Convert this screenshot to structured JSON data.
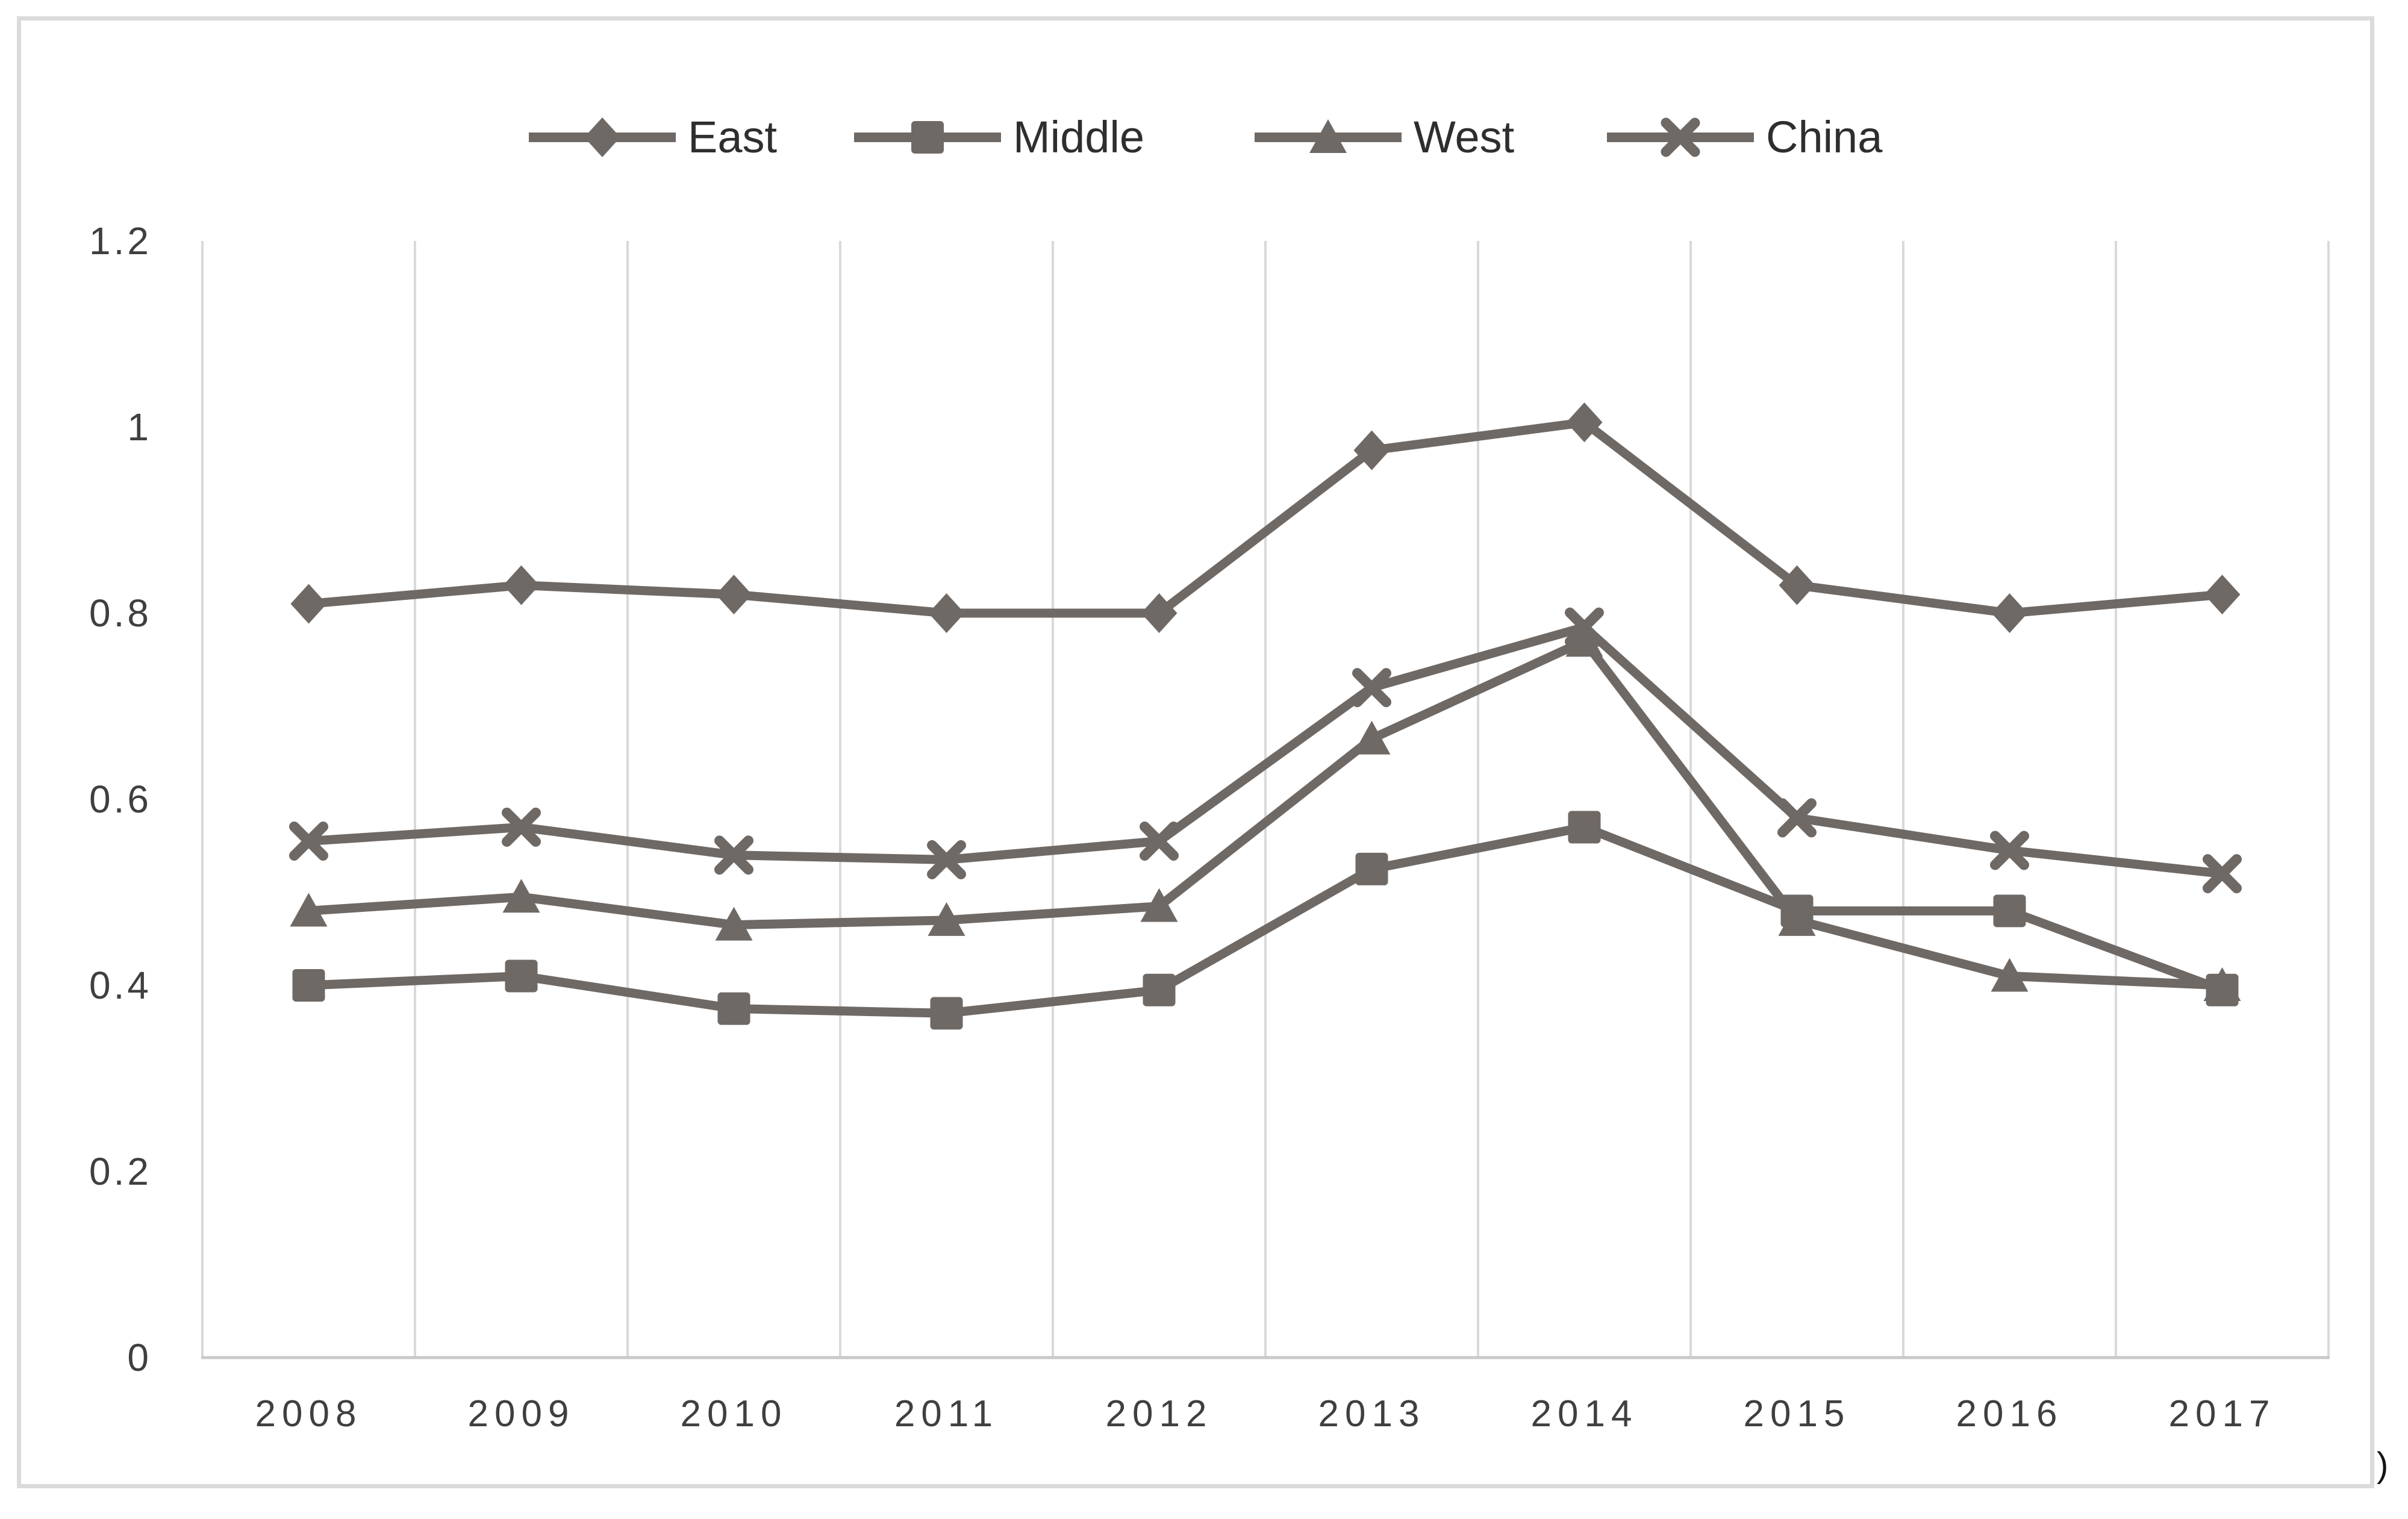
{
  "figure": {
    "background": "#ffffff",
    "border_color": "#dbdbdb",
    "stray_text": ")"
  },
  "chart_data": {
    "type": "line",
    "title": "",
    "xlabel": "",
    "ylabel": "",
    "categories": [
      "2008",
      "2009",
      "2010",
      "2011",
      "2012",
      "2013",
      "2014",
      "2015",
      "2016",
      "2017"
    ],
    "series": [
      {
        "name": "East",
        "marker": "diamond",
        "values": [
          0.81,
          0.83,
          0.82,
          0.8,
          0.8,
          0.975,
          1.005,
          0.83,
          0.8,
          0.82
        ]
      },
      {
        "name": "Middle",
        "marker": "square",
        "values": [
          0.4,
          0.41,
          0.375,
          0.37,
          0.395,
          0.525,
          0.57,
          0.48,
          0.48,
          0.395
        ]
      },
      {
        "name": "West",
        "marker": "triangle",
        "values": [
          0.48,
          0.495,
          0.465,
          0.47,
          0.485,
          0.665,
          0.77,
          0.47,
          0.41,
          0.4
        ]
      },
      {
        "name": "China",
        "marker": "x",
        "values": [
          0.555,
          0.57,
          0.54,
          0.535,
          0.555,
          0.72,
          0.785,
          0.58,
          0.545,
          0.52
        ]
      }
    ],
    "ylim": [
      0,
      1.2
    ],
    "yticks": [
      0,
      0.2,
      0.4,
      0.6,
      0.8,
      1,
      1.2
    ],
    "ytick_labels": [
      "0",
      "0.2",
      "0.4",
      "0.6",
      "0.8",
      "1",
      "1.2"
    ],
    "legend_position": "top",
    "legend_order": [
      "East",
      "Middle",
      "West",
      "China"
    ],
    "grid": "vertical-only",
    "colors": {
      "series": "#6f6965",
      "gridline": "#d9d9d9",
      "axis_line": "#c9c9c9",
      "tick_label": "#3f3f3f",
      "legend_label": "#2e2e2e"
    }
  }
}
